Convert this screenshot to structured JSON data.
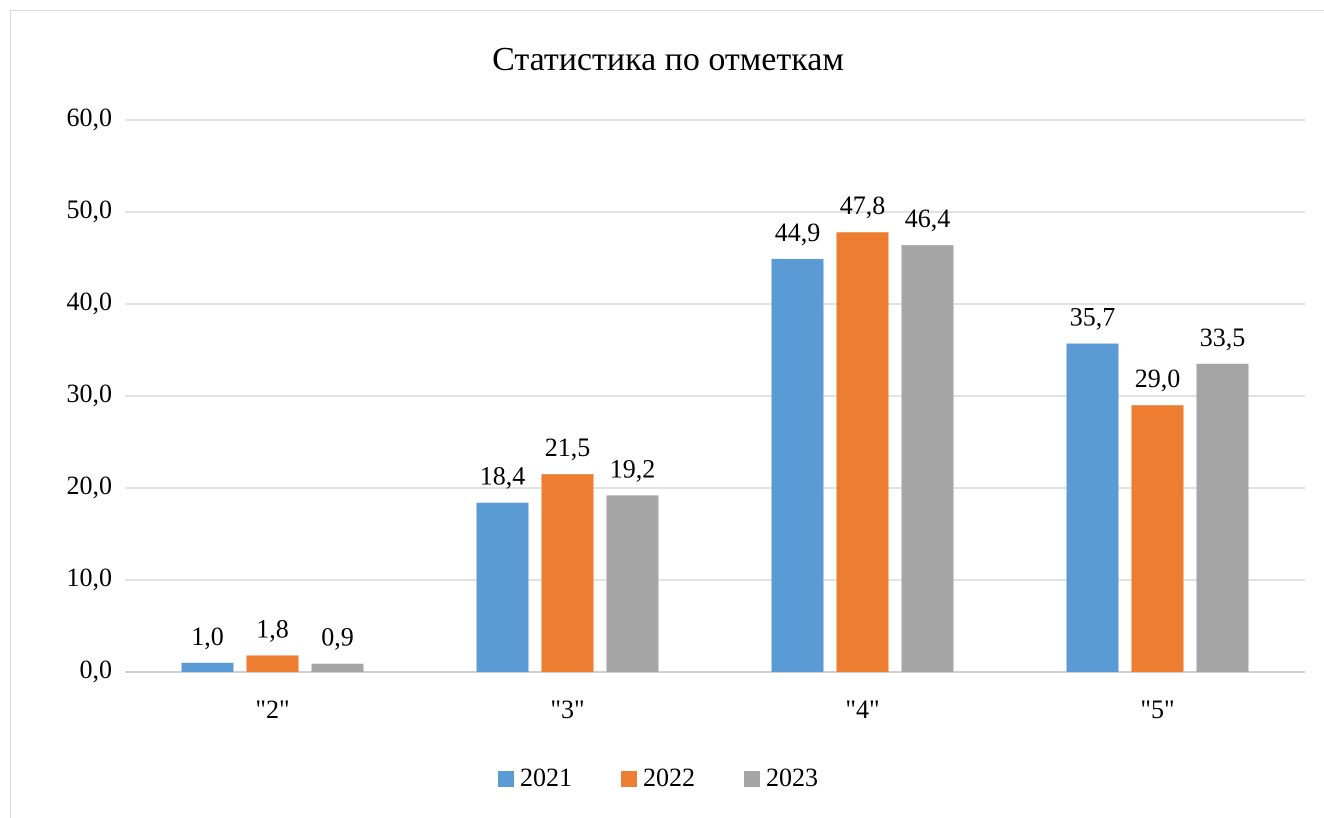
{
  "chart_data": {
    "type": "bar",
    "title": "Статистика по отметкам",
    "categories": [
      "\"2\"",
      "\"3\"",
      "\"4\"",
      "\"5\""
    ],
    "series": [
      {
        "name": "2021",
        "color": "#5b9bd5",
        "values": [
          1.0,
          18.4,
          44.9,
          35.7
        ],
        "value_labels": [
          "1,0",
          "18,4",
          "44,9",
          "35,7"
        ]
      },
      {
        "name": "2022",
        "color": "#ed7d31",
        "values": [
          1.8,
          21.5,
          47.8,
          29.0
        ],
        "value_labels": [
          "1,8",
          "21,5",
          "47,8",
          "29,0"
        ]
      },
      {
        "name": "2023",
        "color": "#a5a5a5",
        "values": [
          0.9,
          19.2,
          46.4,
          33.5
        ],
        "value_labels": [
          "0,9",
          "19,2",
          "46,4",
          "33,5"
        ]
      }
    ],
    "ylim": [
      0,
      60
    ],
    "yticks": [
      {
        "value": 0,
        "label": "0,0"
      },
      {
        "value": 10,
        "label": "10,0"
      },
      {
        "value": 20,
        "label": "20,0"
      },
      {
        "value": 30,
        "label": "30,0"
      },
      {
        "value": 40,
        "label": "40,0"
      },
      {
        "value": 50,
        "label": "50,0"
      },
      {
        "value": 60,
        "label": "60,0"
      }
    ],
    "grid": true,
    "legend": "bottom"
  }
}
